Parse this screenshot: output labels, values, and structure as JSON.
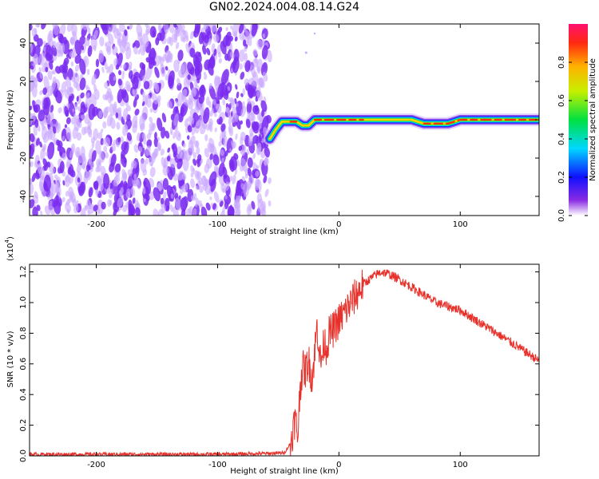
{
  "title": "GN02.2024.004.08.14.G24",
  "colors": {
    "snr_line": "#e8302a",
    "spectrogram_bg_dots": "#c9a8ff",
    "spectrogram_dark_dots": "#7a2cf0",
    "axis": "#000000"
  },
  "chart_data": [
    {
      "type": "heatmap",
      "title": "GN02.2024.004.08.14.G24",
      "xlabel": "Height of straight line (km)",
      "ylabel": "Frequency (Hz)",
      "xlim": [
        -255,
        165
      ],
      "ylim": [
        -50,
        50
      ],
      "xticks": [
        -200,
        -100,
        0,
        100
      ],
      "yticks": [
        -40,
        -20,
        0,
        20,
        40
      ],
      "colorbar": {
        "label": "Normalized spectral amplitude",
        "range": [
          0.0,
          1.0
        ],
        "ticks": [
          "0.0",
          "0.2",
          "0.4",
          "0.6",
          "0.8"
        ],
        "tick_values": [
          0.0,
          0.2,
          0.4,
          0.6,
          0.8
        ],
        "colormap": "rainbow (violet to red)"
      },
      "noise_region_x": [
        -255,
        -57
      ],
      "signal_track": {
        "x": [
          -57,
          -52,
          -47,
          -40,
          -35,
          -30,
          -25,
          -20,
          -10,
          0,
          20,
          40,
          60,
          70,
          80,
          90,
          100,
          120,
          140,
          165
        ],
        "frequency": [
          -10,
          -5,
          -1,
          -1,
          -1,
          -3,
          -3,
          0,
          0,
          0,
          0,
          0,
          0,
          -2,
          -2,
          -2,
          0,
          0,
          0,
          0
        ],
        "amplitude": [
          0.5,
          0.55,
          0.75,
          0.9,
          0.95,
          0.6,
          0.7,
          0.9,
          0.95,
          0.95,
          0.85,
          0.8,
          0.8,
          0.95,
          0.95,
          0.95,
          0.9,
          0.9,
          0.95,
          0.95
        ]
      },
      "legend": "none"
    },
    {
      "type": "line",
      "xlabel": "Height of straight line (km)",
      "ylabel": "SNR (10 * v/v)",
      "y_multiplier_label": "(x10",
      "y_multiplier_exp": "4",
      "y_multiplier_close": ")",
      "xlim": [
        -255,
        165
      ],
      "ylim": [
        0,
        1.25
      ],
      "xticks": [
        -200,
        -100,
        0,
        100
      ],
      "yticks": [
        "0.0",
        "0.2",
        "0.4",
        "0.6",
        "0.8",
        "1.0",
        "1.2"
      ],
      "ytick_values": [
        0.0,
        0.2,
        0.4,
        0.6,
        0.8,
        1.0,
        1.2
      ],
      "series": [
        {
          "x": [
            -255,
            -200,
            -150,
            -100,
            -60,
            -45,
            -40,
            -36,
            -34,
            -32,
            -30,
            -28,
            -25,
            -22,
            -18,
            -15,
            -12,
            -10,
            -8,
            -5,
            0,
            10,
            20,
            30,
            35,
            40,
            50,
            60,
            80,
            100,
            120,
            140,
            165
          ],
          "y": [
            0.01,
            0.01,
            0.01,
            0.01,
            0.015,
            0.02,
            0.08,
            0.25,
            0.12,
            0.45,
            0.58,
            0.55,
            0.62,
            0.5,
            0.85,
            0.6,
            0.75,
            0.7,
            0.8,
            0.82,
            0.88,
            1.0,
            1.12,
            1.18,
            1.2,
            1.19,
            1.15,
            1.1,
            1.0,
            0.95,
            0.85,
            0.75,
            0.62
          ],
          "noise_amplitude": 0.03
        }
      ],
      "legend": "none"
    }
  ],
  "axes_text": {
    "top_xticklabels": [
      "-200",
      "-100",
      "0",
      "100"
    ],
    "top_yticklabels": [
      "40",
      "20",
      "0",
      "-20",
      "-40"
    ],
    "bottom_xticklabels": [
      "-200",
      "-100",
      "0",
      "100"
    ]
  }
}
